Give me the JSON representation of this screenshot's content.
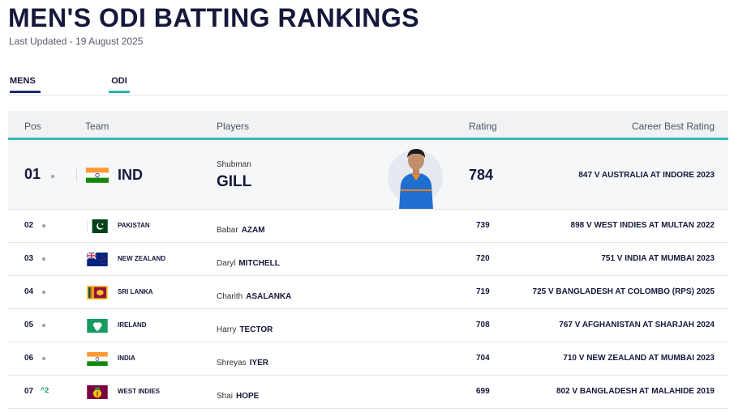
{
  "header": {
    "title": "MEN'S ODI BATTING RANKINGS",
    "last_updated": "Last Updated - 19 August 2025"
  },
  "filters": {
    "gender": "MENS",
    "format": "ODI"
  },
  "table": {
    "columns": {
      "pos": "Pos",
      "team": "Team",
      "players": "Players",
      "rating": "Rating",
      "best": "Career Best Rating"
    },
    "top": {
      "pos": "01",
      "team": "IND",
      "flag": "flag-india",
      "first_name": "Shubman",
      "last_name": "GILL",
      "rating": "784",
      "best": "847 V AUSTRALIA AT INDORE 2023"
    },
    "rows": [
      {
        "pos": "02",
        "movement": "",
        "team": "PAKISTAN",
        "flag": "flag-pakistan",
        "first_name": "Babar",
        "last_name": "AZAM",
        "rating": "739",
        "best": "898 V WEST INDIES AT MULTAN 2022"
      },
      {
        "pos": "03",
        "movement": "",
        "team": "NEW ZEALAND",
        "flag": "flag-new-zealand",
        "first_name": "Daryl",
        "last_name": "MITCHELL",
        "rating": "720",
        "best": "751 V INDIA AT MUMBAI 2023"
      },
      {
        "pos": "04",
        "movement": "",
        "team": "SRI LANKA",
        "flag": "flag-sri-lanka",
        "first_name": "Charith",
        "last_name": "ASALANKA",
        "rating": "719",
        "best": "725 V BANGLADESH AT COLOMBO (RPS) 2025"
      },
      {
        "pos": "05",
        "movement": "",
        "team": "IRELAND",
        "flag": "flag-ireland-cricket",
        "first_name": "Harry",
        "last_name": "TECTOR",
        "rating": "708",
        "best": "767 V AFGHANISTAN AT SHARJAH 2024"
      },
      {
        "pos": "06",
        "movement": "",
        "team": "INDIA",
        "flag": "flag-india",
        "first_name": "Shreyas",
        "last_name": "IYER",
        "rating": "704",
        "best": "710 V NEW ZEALAND AT MUMBAI 2023"
      },
      {
        "pos": "07",
        "movement": "^2",
        "team": "WEST INDIES",
        "flag": "flag-west-indies",
        "first_name": "Shai",
        "last_name": "HOPE",
        "rating": "699",
        "best": "802 V BANGLADESH AT MALAHIDE 2019"
      }
    ]
  },
  "colors": {
    "navy": "#14183a",
    "teal": "#34b8b4",
    "up": "#1f9d55"
  }
}
